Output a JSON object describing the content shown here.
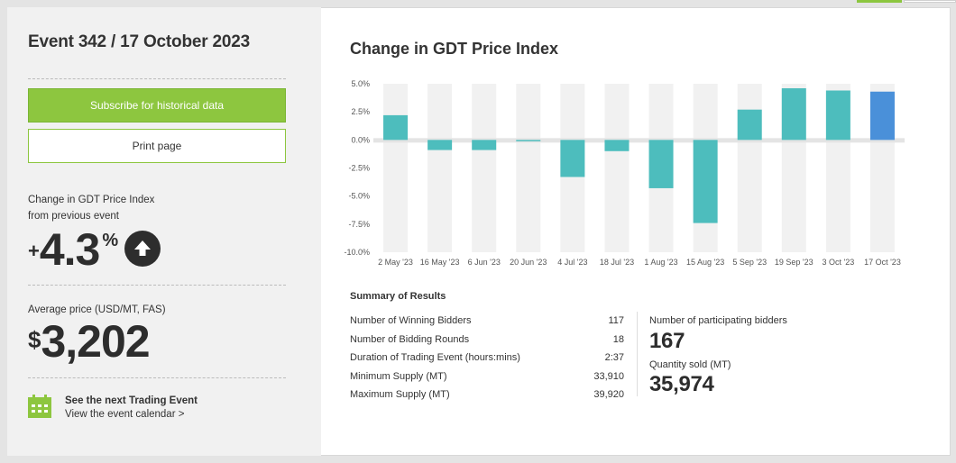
{
  "event": {
    "title": "Event 342 / 17 October 2023"
  },
  "buttons": {
    "subscribe_label": "Subscribe for historical data",
    "print_label": "Print page"
  },
  "change_index": {
    "label_line1": "Change in GDT Price Index",
    "label_line2": "from previous event",
    "sign": "+",
    "value": "4.3",
    "unit": "%",
    "direction_icon": "arrow-up-icon"
  },
  "average_price": {
    "label": "Average price (USD/MT, FAS)",
    "currency": "$",
    "value": "3,202"
  },
  "next_event": {
    "icon": "calendar-icon",
    "title": "See the next Trading Event",
    "link": "View the event calendar >"
  },
  "chart_title": "Change in GDT Price Index",
  "chart_data": {
    "type": "bar",
    "title": "Change in GDT Price Index",
    "xlabel": "",
    "ylabel": "",
    "ylim": [
      -10,
      5
    ],
    "yticks": [
      "5.0%",
      "2.5%",
      "0.0%",
      "-2.5%",
      "-5.0%",
      "-7.5%",
      "-10.0%"
    ],
    "ytick_values": [
      5,
      2.5,
      0,
      -2.5,
      -5,
      -7.5,
      -10
    ],
    "categories": [
      "2 May '23",
      "16 May '23",
      "6 Jun '23",
      "20 Jun '23",
      "4 Jul '23",
      "18 Jul '23",
      "1 Aug '23",
      "15 Aug '23",
      "5 Sep '23",
      "19 Sep '23",
      "3 Oct '23",
      "17 Oct '23"
    ],
    "values": [
      2.2,
      -0.9,
      -0.9,
      -0.1,
      -3.3,
      -1.0,
      -4.3,
      -7.4,
      2.7,
      4.6,
      4.4,
      4.3
    ],
    "bar_color": "#4dbdbd",
    "highlight_color": "#4a90d9",
    "highlight_index": 11,
    "band_color": "#f1f1f1",
    "zero_line_color": "#e4e4e4",
    "grid": false
  },
  "summary": {
    "title": "Summary of Results",
    "rows": [
      {
        "label": "Number of Winning Bidders",
        "value": "117"
      },
      {
        "label": "Number of Bidding Rounds",
        "value": "18"
      },
      {
        "label": "Duration of Trading Event (hours:mins)",
        "value": "2:37"
      },
      {
        "label": "Minimum Supply (MT)",
        "value": "33,910"
      },
      {
        "label": "Maximum Supply (MT)",
        "value": "39,920"
      }
    ],
    "participating_label": "Number of participating bidders",
    "participating_value": "167",
    "quantity_label": "Quantity sold (MT)",
    "quantity_value": "35,974"
  },
  "colors": {
    "accent_green": "#8dc63f",
    "text_dark": "#2d2d2d"
  }
}
